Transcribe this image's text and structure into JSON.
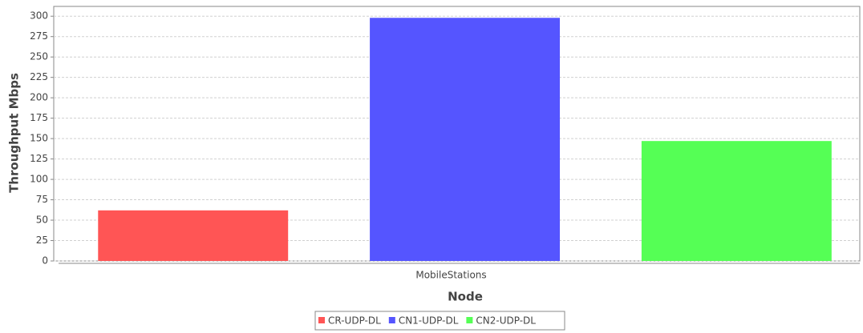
{
  "chart_data": {
    "type": "bar",
    "x_label": "Node",
    "y_label": "Throughput Mbps",
    "categories": [
      "MobileStations"
    ],
    "series": [
      {
        "name": "CR-UDP-DL",
        "color": "#ff5555",
        "values": [
          62
        ]
      },
      {
        "name": "CN1-UDP-DL",
        "color": "#5555ff",
        "values": [
          298
        ]
      },
      {
        "name": "CN2-UDP-DL",
        "color": "#55ff55",
        "values": [
          147
        ]
      }
    ],
    "ylim": [
      0,
      312
    ],
    "yticks": [
      0,
      25,
      50,
      75,
      100,
      125,
      150,
      175,
      200,
      225,
      250,
      275,
      300
    ],
    "grid": true,
    "legend": "bottom"
  }
}
